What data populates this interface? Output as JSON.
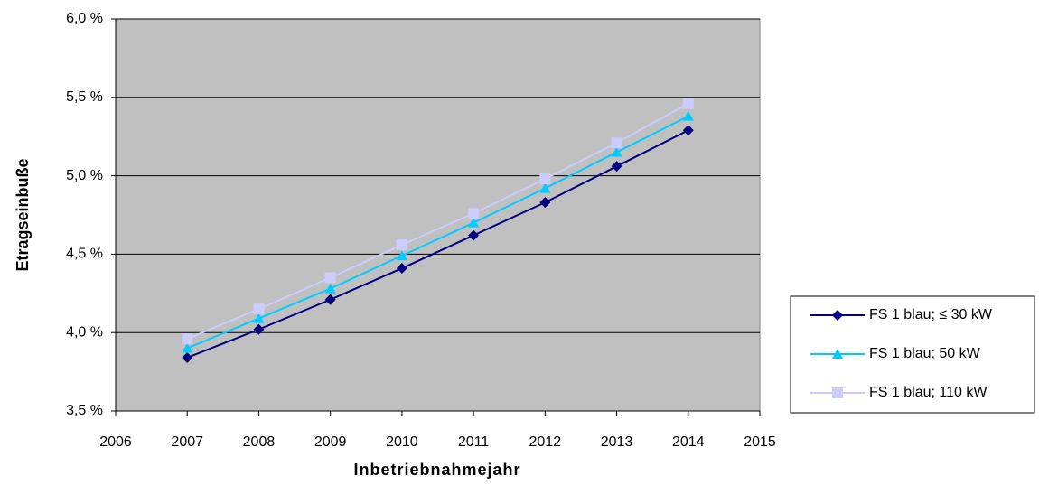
{
  "chart_data": {
    "type": "line",
    "y_label": "Etragseinbuße",
    "x_label": "Inbetriebnahmejahr",
    "x": [
      2007,
      2008,
      2009,
      2010,
      2011,
      2012,
      2013,
      2014
    ],
    "series": [
      {
        "name": "FS 1 blau; ≤ 30 kW",
        "color": "#000080",
        "marker": "diamond",
        "values": [
          3.84,
          4.02,
          4.21,
          4.41,
          4.62,
          4.83,
          5.06,
          5.29
        ]
      },
      {
        "name": "FS 1 blau; 50 kW",
        "color": "#00ccff",
        "marker": "triangle",
        "values": [
          3.9,
          4.09,
          4.28,
          4.49,
          4.7,
          4.92,
          5.15,
          5.38
        ]
      },
      {
        "name": "FS 1 blau; 110 kW",
        "color": "#ccccff",
        "marker": "square",
        "values": [
          3.96,
          4.15,
          4.35,
          4.56,
          4.76,
          4.98,
          5.21,
          5.46
        ]
      }
    ],
    "xlim": [
      2006,
      2015
    ],
    "xticks": [
      2006,
      2007,
      2008,
      2009,
      2010,
      2011,
      2012,
      2013,
      2014,
      2015
    ],
    "ylim": [
      3.5,
      6.0
    ],
    "yticks": [
      {
        "value": 3.5,
        "label": "3,5 %"
      },
      {
        "value": 4.0,
        "label": "4,0 %"
      },
      {
        "value": 4.5,
        "label": "4,5 %"
      },
      {
        "value": 5.0,
        "label": "5,0 %"
      },
      {
        "value": 5.5,
        "label": "5,5 %"
      },
      {
        "value": 6.0,
        "label": "6,0 %"
      }
    ],
    "grid": true,
    "legend": "right"
  }
}
